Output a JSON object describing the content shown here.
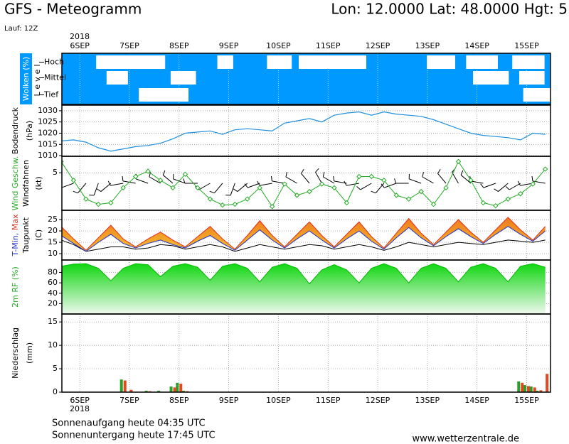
{
  "header": {
    "title": "GFS - Meteogramm",
    "location": "Lon: 12.0000  Lat: 48.0000  Hgt: 5",
    "run": "Lauf: 12Z"
  },
  "time_axis": {
    "year": "2018",
    "xlim": [
      -0.36,
      9.48
    ],
    "xticks": [
      {
        "value": 0,
        "label": "6SEP"
      },
      {
        "value": 1,
        "label": "7SEP"
      },
      {
        "value": 2,
        "label": "8SEP"
      },
      {
        "value": 3,
        "label": "9SEP"
      },
      {
        "value": 4,
        "label": "10SEP"
      },
      {
        "value": 5,
        "label": "11SEP"
      },
      {
        "value": 6,
        "label": "12SEP"
      },
      {
        "value": 7,
        "label": "13SEP"
      },
      {
        "value": 8,
        "label": "14SEP"
      },
      {
        "value": 9,
        "label": "15SEP"
      }
    ],
    "x": [
      -0.375,
      -0.125,
      0.125,
      0.375,
      0.625,
      0.875,
      1.125,
      1.375,
      1.625,
      1.875,
      2.125,
      2.375,
      2.625,
      2.875,
      3.125,
      3.375,
      3.625,
      3.875,
      4.125,
      4.375,
      4.625,
      4.875,
      5.125,
      5.375,
      5.625,
      5.875,
      6.125,
      6.375,
      6.625,
      6.875,
      7.125,
      7.375,
      7.625,
      7.875,
      8.125,
      8.375,
      8.625,
      8.875,
      9.125,
      9.375
    ]
  },
  "chart_data": [
    {
      "type": "cloud",
      "ylabel": "Wolken (%)",
      "ylabel2": "Level",
      "color": "#0099ff",
      "levels": [
        {
          "name": "Hoch",
          "intervals": [
            [
              0.33,
              1.72
            ],
            [
              2.77,
              3.09
            ],
            [
              3.77,
              4.27
            ],
            [
              4.41,
              5.77
            ],
            [
              6.99,
              7.56
            ],
            [
              7.78,
              8.42
            ],
            [
              8.71,
              9.36
            ]
          ]
        },
        {
          "name": "Mittel",
          "intervals": [
            [
              0.54,
              0.97
            ],
            [
              1.83,
              2.34
            ],
            [
              7.92,
              8.64
            ],
            [
              8.85,
              9.36
            ]
          ]
        },
        {
          "name": "Tief",
          "intervals": [
            [
              1.19,
              2.19
            ],
            [
              8.93,
              9.48
            ]
          ]
        }
      ]
    },
    {
      "type": "line",
      "ylabel": "Bodendruck",
      "yunit": "(hPa)",
      "ylim": [
        1009.7,
        1032.5
      ],
      "yticks": [
        1010,
        1015,
        1020,
        1025,
        1030
      ],
      "grid": true,
      "series": [
        {
          "color": "#1f8fdc",
          "values": [
            1016.5,
            1017,
            1016,
            1013.5,
            1012,
            1013,
            1014,
            1014.5,
            1015.5,
            1017.5,
            1020,
            1020.5,
            1021,
            1019.5,
            1021.5,
            1022,
            1021.5,
            1021,
            1024.5,
            1025.5,
            1026.5,
            1025,
            1028,
            1029,
            1029.5,
            1028,
            1029.5,
            1028.5,
            1028,
            1027.5,
            1026,
            1024,
            1022,
            1020,
            1019,
            1018.5,
            1018,
            1017,
            1020,
            1019.5
          ]
        }
      ]
    },
    {
      "type": "wind",
      "ylabel": "Wind Geschw.",
      "ylabel2": "Windfahnen",
      "yunit": "(kt)",
      "ylim": [
        0,
        7.2
      ],
      "yticks": [
        5
      ],
      "grid": true,
      "label_color": "#22aa22",
      "series": [
        {
          "color": "#22aa22",
          "values": [
            6.5,
            4,
            1.5,
            0.8,
            1,
            3,
            4.5,
            5.2,
            4,
            3,
            4.8,
            3,
            1.5,
            0.7,
            0.8,
            1.5,
            3,
            0.5,
            3.5,
            2,
            2.5,
            3.5,
            3,
            1,
            4.5,
            4.5,
            4,
            2,
            1.5,
            2.5,
            0.8,
            3,
            6.5,
            4,
            1,
            0.6,
            1.5,
            2.2,
            3.5,
            5.5
          ]
        }
      ],
      "direction": [
        270,
        250,
        220,
        200,
        230,
        260,
        280,
        290,
        300,
        310,
        290,
        270,
        240,
        220,
        200,
        230,
        250,
        260,
        280,
        300,
        320,
        330,
        300,
        280,
        260,
        240,
        220,
        250,
        270,
        290,
        300,
        320,
        330,
        310,
        280,
        250,
        230,
        240,
        260,
        280
      ]
    },
    {
      "type": "temperature",
      "ylabel_min": "T-Min,",
      "ylabel_max": "Max",
      "ylabel2": "Taupunkt",
      "yunit": "(C)",
      "ylim": [
        7.2,
        29.1
      ],
      "yticks": [
        10,
        15,
        20,
        25
      ],
      "grid": true,
      "fill": [
        "#ee6a1c",
        "#f4d232"
      ],
      "series": [
        {
          "color": "#e02a1a",
          "values": [
            22,
            16.5,
            11.5,
            17,
            22.5,
            16.5,
            13,
            16.5,
            19.5,
            16,
            13,
            17.5,
            22,
            16.5,
            12,
            18,
            24.5,
            18,
            13,
            18.5,
            24,
            18,
            13,
            18.5,
            24,
            17.5,
            12.5,
            19,
            25.5,
            19,
            14,
            19.5,
            25,
            19.5,
            15,
            20.5,
            26,
            20.5,
            16,
            22
          ]
        },
        {
          "color": "#2030d0",
          "values": [
            18,
            14.5,
            11,
            15,
            18.5,
            14.5,
            12.5,
            14.5,
            16,
            14,
            12.5,
            15.5,
            18,
            14.5,
            11.5,
            16,
            20.5,
            16,
            12.5,
            16.5,
            20,
            16,
            12.5,
            16.5,
            20,
            15.5,
            12,
            17,
            21.5,
            17,
            13.5,
            17.5,
            21,
            17.5,
            14.5,
            18.5,
            22,
            18.5,
            15.5,
            20
          ]
        },
        {
          "color": "#000000",
          "values": [
            16,
            14,
            11,
            12,
            13,
            13,
            12,
            12.5,
            14,
            13.5,
            12,
            13,
            14,
            13,
            11,
            12.5,
            14,
            13,
            12,
            13,
            14,
            13.5,
            12,
            13,
            14,
            13,
            11.5,
            13,
            15,
            14,
            13,
            14,
            15,
            14.5,
            14,
            15,
            16,
            15.5,
            15,
            16
          ]
        }
      ]
    },
    {
      "type": "area",
      "ylabel": "2m RF (%)",
      "ylim": [
        0,
        104
      ],
      "yticks": [
        20,
        40,
        60,
        80
      ],
      "grid": true,
      "label_color": "#22aa22",
      "fill": [
        "#00d400",
        "#eef8ee"
      ],
      "series": [
        {
          "color": "#00b800",
          "values": [
            92,
            96,
            97,
            88,
            64,
            88,
            97,
            95,
            72,
            92,
            97,
            90,
            65,
            92,
            97,
            88,
            62,
            90,
            97,
            88,
            58,
            85,
            95,
            85,
            60,
            88,
            97,
            88,
            60,
            88,
            97,
            88,
            62,
            90,
            97,
            88,
            62,
            92,
            97,
            90
          ]
        }
      ]
    },
    {
      "type": "bar",
      "ylabel": "Niederschlag",
      "yunit": "(mm)",
      "ylim": [
        0,
        16.7
      ],
      "yticks": [
        0,
        5,
        10,
        15
      ],
      "grid": true,
      "x": [
        0.875,
        1.0,
        1.375,
        1.625,
        1.875,
        2.0,
        2.125,
        8.875,
        9.0,
        9.125,
        9.25,
        9.375
      ],
      "series": [
        {
          "color": "#2aa02a",
          "values": [
            2.7,
            0,
            0.3,
            0.3,
            1.2,
            2.0,
            0.3,
            2.3,
            1.5,
            1.2,
            0.3,
            0
          ]
        },
        {
          "color": "#e04a20",
          "values": [
            2.5,
            0.5,
            0.2,
            0,
            1.0,
            1.8,
            0.2,
            2.0,
            1.3,
            1.0,
            0.4,
            3.9
          ]
        }
      ]
    }
  ],
  "footer": {
    "sunrise": "Sonnenaufgang heute 04:35 UTC",
    "sunset": "Sonnenuntergang heute 17:45 UTC",
    "source": "www.wetterzentrale.de"
  }
}
